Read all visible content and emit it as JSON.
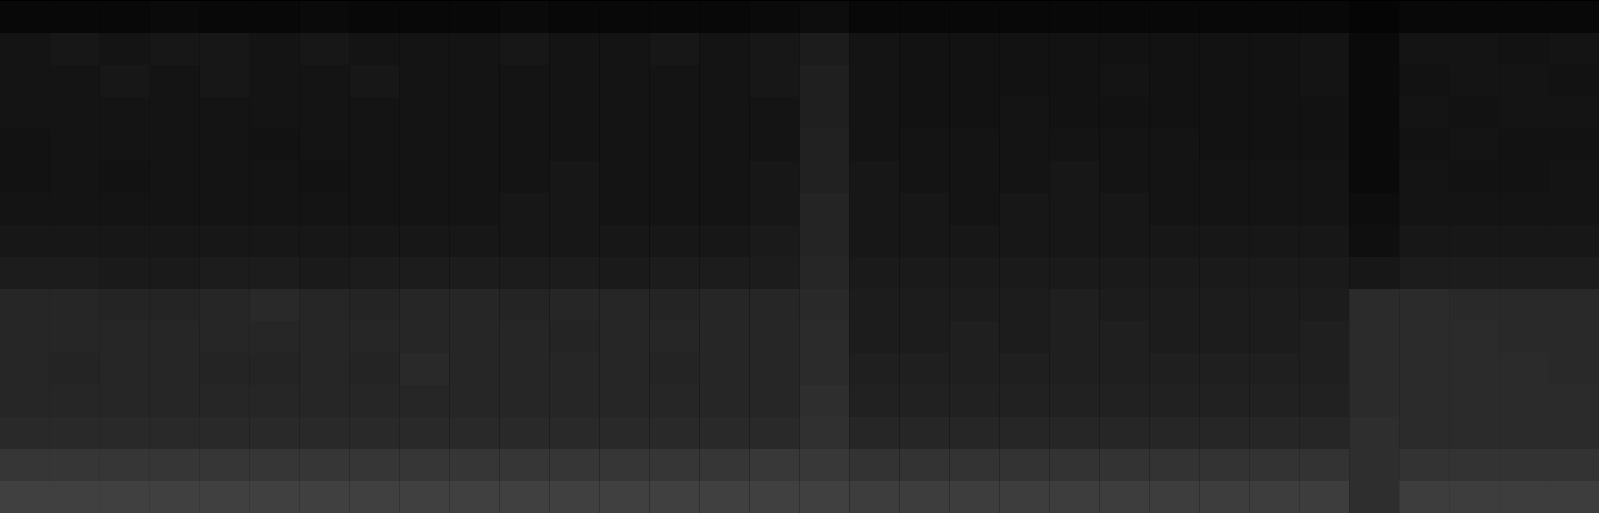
{
  "chart_data": {
    "type": "heatmap",
    "tick_labels": false,
    "zlim": [
      0,
      100
    ],
    "cells": [
      [
        3,
        3,
        3,
        4,
        3,
        3,
        4,
        3,
        3,
        3,
        4,
        3,
        3,
        3,
        3,
        4,
        5,
        3,
        3,
        3,
        3,
        3,
        3,
        3,
        3,
        3,
        3,
        2,
        3,
        3,
        3,
        3
      ],
      [
        8,
        9,
        8,
        9,
        9,
        8,
        9,
        8,
        8,
        8,
        9,
        8,
        8,
        9,
        8,
        9,
        11,
        8,
        7,
        7,
        7,
        7,
        7,
        7,
        7,
        7,
        8,
        4,
        8,
        8,
        7,
        8
      ],
      [
        8,
        8,
        9,
        8,
        9,
        8,
        8,
        9,
        8,
        8,
        8,
        8,
        8,
        8,
        8,
        9,
        12,
        8,
        7,
        7,
        7,
        7,
        8,
        7,
        7,
        7,
        8,
        4,
        7,
        8,
        8,
        7
      ],
      [
        8,
        8,
        8,
        8,
        8,
        8,
        8,
        8,
        8,
        8,
        8,
        8,
        8,
        8,
        8,
        8,
        12,
        8,
        7,
        7,
        8,
        7,
        7,
        7,
        7,
        7,
        7,
        4,
        8,
        7,
        8,
        8
      ],
      [
        7,
        8,
        8,
        8,
        8,
        7,
        8,
        8,
        8,
        8,
        8,
        8,
        8,
        8,
        8,
        8,
        13,
        8,
        8,
        8,
        8,
        8,
        8,
        8,
        7,
        7,
        7,
        4,
        7,
        8,
        7,
        7
      ],
      [
        7,
        8,
        7,
        8,
        8,
        8,
        7,
        8,
        8,
        8,
        8,
        9,
        8,
        8,
        8,
        9,
        13,
        9,
        8,
        8,
        8,
        9,
        8,
        8,
        8,
        8,
        8,
        4,
        8,
        7,
        7,
        8
      ],
      [
        8,
        8,
        8,
        8,
        8,
        8,
        8,
        8,
        8,
        8,
        9,
        9,
        8,
        8,
        8,
        9,
        14,
        9,
        9,
        8,
        9,
        9,
        9,
        8,
        8,
        8,
        8,
        5,
        8,
        8,
        8,
        8
      ],
      [
        9,
        9,
        9,
        9,
        9,
        9,
        9,
        9,
        9,
        9,
        9,
        9,
        9,
        9,
        9,
        10,
        14,
        9,
        9,
        9,
        9,
        9,
        9,
        9,
        9,
        9,
        9,
        6,
        9,
        9,
        9,
        9
      ],
      [
        11,
        11,
        10,
        10,
        11,
        11,
        10,
        11,
        11,
        11,
        11,
        11,
        10,
        11,
        11,
        11,
        15,
        10,
        10,
        10,
        10,
        10,
        10,
        10,
        10,
        10,
        10,
        9,
        11,
        11,
        11,
        11
      ],
      [
        15,
        15,
        14,
        14,
        15,
        16,
        15,
        14,
        15,
        15,
        14,
        15,
        15,
        14,
        15,
        15,
        16,
        11,
        11,
        11,
        11,
        12,
        11,
        11,
        11,
        11,
        11,
        17,
        17,
        16,
        16,
        16
      ],
      [
        15,
        15,
        15,
        15,
        15,
        15,
        15,
        15,
        15,
        15,
        15,
        14,
        15,
        15,
        15,
        15,
        17,
        11,
        11,
        12,
        11,
        12,
        12,
        11,
        11,
        11,
        12,
        17,
        17,
        17,
        16,
        16
      ],
      [
        15,
        14,
        15,
        15,
        14,
        14,
        15,
        14,
        16,
        15,
        15,
        15,
        15,
        14,
        15,
        15,
        17,
        12,
        12,
        12,
        12,
        12,
        12,
        12,
        12,
        12,
        12,
        17,
        17,
        17,
        17,
        16
      ],
      [
        15,
        15,
        15,
        15,
        15,
        15,
        15,
        15,
        15,
        15,
        15,
        15,
        15,
        15,
        15,
        15,
        18,
        13,
        13,
        13,
        13,
        13,
        13,
        13,
        13,
        13,
        13,
        17,
        17,
        17,
        17,
        17
      ],
      [
        16,
        16,
        16,
        16,
        16,
        16,
        16,
        16,
        16,
        16,
        16,
        16,
        16,
        16,
        16,
        16,
        19,
        15,
        15,
        15,
        15,
        15,
        15,
        15,
        15,
        15,
        15,
        18,
        17,
        17,
        17,
        17
      ],
      [
        21,
        21,
        21,
        21,
        21,
        21,
        21,
        21,
        21,
        21,
        21,
        21,
        21,
        21,
        21,
        22,
        22,
        20,
        20,
        20,
        20,
        20,
        20,
        20,
        20,
        20,
        20,
        18,
        20,
        20,
        20,
        20
      ],
      [
        25,
        25,
        25,
        25,
        25,
        25,
        25,
        25,
        25,
        25,
        25,
        25,
        25,
        25,
        25,
        25,
        25,
        24,
        24,
        24,
        24,
        24,
        24,
        24,
        24,
        24,
        24,
        18,
        24,
        24,
        24,
        24
      ]
    ]
  }
}
